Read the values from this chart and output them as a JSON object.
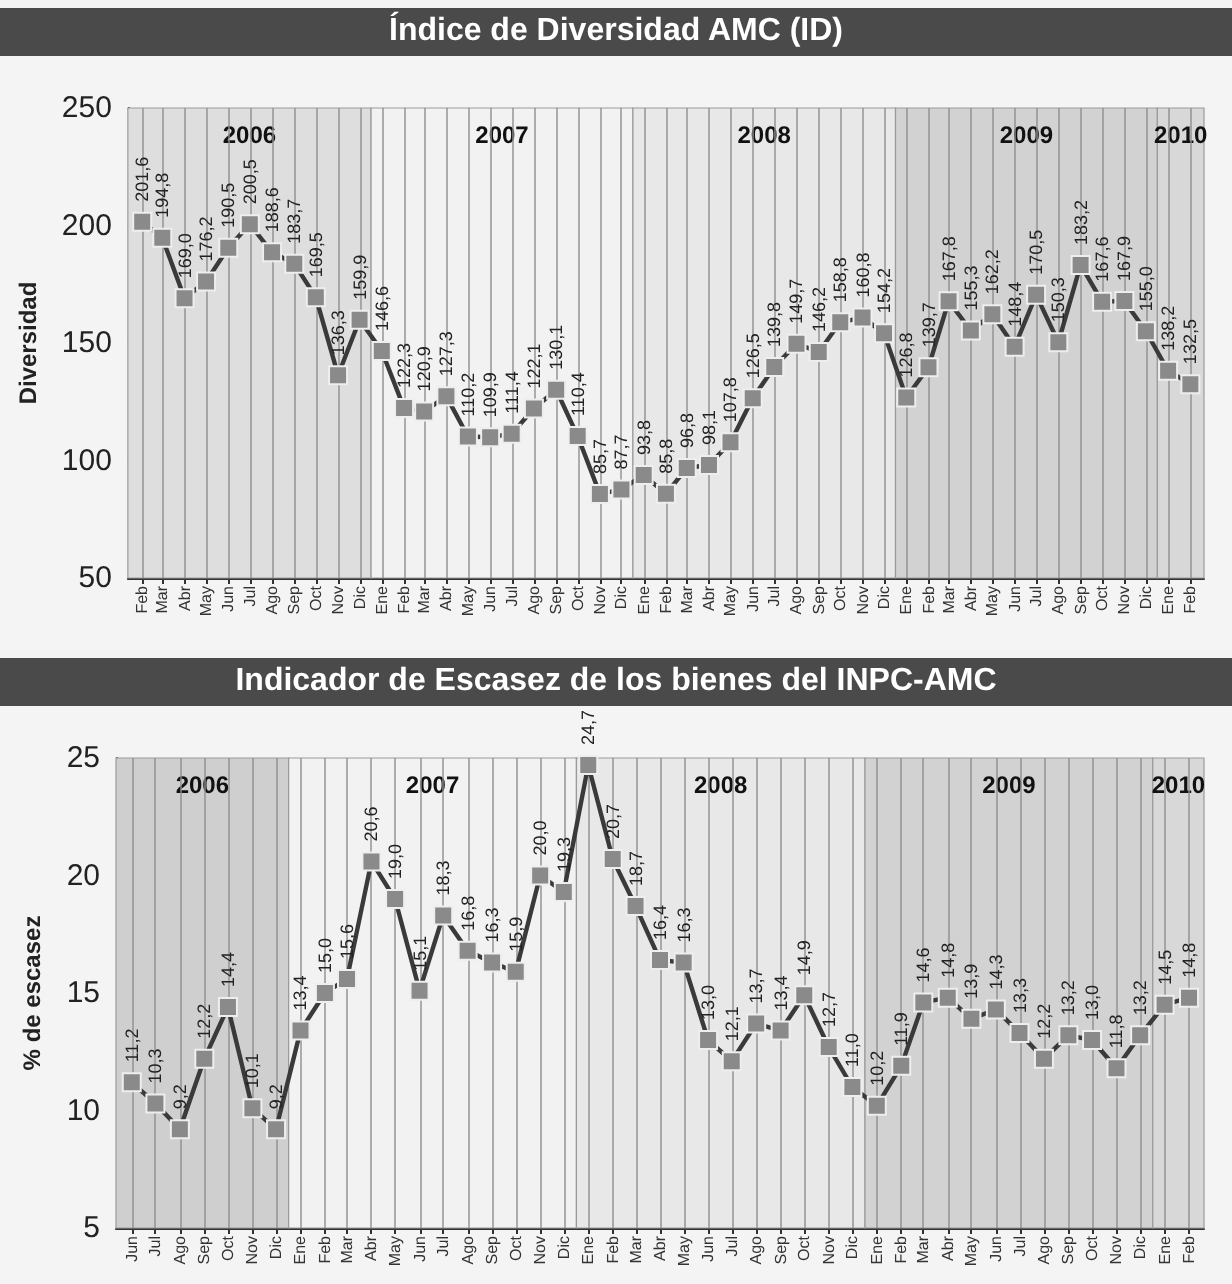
{
  "chart_data": [
    {
      "type": "line",
      "title": "Índice de Diversidad AMC (ID)",
      "ylabel": "Diversidad",
      "x": [
        "2006-02",
        "2006-03",
        "2006-04",
        "2006-05",
        "2006-06",
        "2006-07",
        "2006-08",
        "2006-09",
        "2006-10",
        "2006-11",
        "2006-12",
        "2007-01",
        "2007-02",
        "2007-03",
        "2007-04",
        "2007-05",
        "2007-06",
        "2007-07",
        "2007-08",
        "2007-09",
        "2007-10",
        "2007-11",
        "2007-12",
        "2008-01",
        "2008-02",
        "2008-03",
        "2008-04",
        "2008-05",
        "2008-06",
        "2008-07",
        "2008-08",
        "2008-09",
        "2008-10",
        "2008-11",
        "2008-12",
        "2009-01",
        "2009-02",
        "2009-03",
        "2009-04",
        "2009-05",
        "2009-06",
        "2009-07",
        "2009-08",
        "2009-09",
        "2009-10",
        "2009-11",
        "2009-12",
        "2010-01",
        "2010-02"
      ],
      "series": [
        {
          "color": "#3a3a3a",
          "values": [
            201.6,
            194.8,
            169.0,
            176.2,
            190.5,
            200.5,
            188.6,
            183.7,
            169.5,
            136.3,
            159.9,
            146.6,
            122.3,
            120.9,
            127.3,
            110.2,
            109.9,
            111.4,
            122.1,
            130.1,
            110.4,
            85.7,
            87.7,
            93.8,
            85.8,
            96.8,
            98.1,
            107.8,
            126.5,
            139.8,
            149.7,
            146.2,
            158.8,
            160.8,
            154.2,
            126.8,
            139.7,
            167.8,
            155.3,
            162.2,
            148.4,
            170.5,
            150.3,
            183.2,
            167.6,
            167.9,
            155.0,
            138.2,
            132.5
          ],
          "value_labels": [
            "201,6",
            "194,8",
            "169,0",
            "176,2",
            "190,5",
            "200,5",
            "188,6",
            "183,7",
            "169,5",
            "136,3",
            "159,9",
            "146,6",
            "122,3",
            "120,9",
            "127,3",
            "110,2",
            "109,9",
            "111,4",
            "122,1",
            "130,1",
            "110,4",
            "85,7",
            "87,7",
            "93,8",
            "85,8",
            "96,8",
            "98,1",
            "107,8",
            "126,5",
            "139,8",
            "149,7",
            "146,2",
            "158,8",
            "160,8",
            "154,2",
            "126,8",
            "139,7",
            "167,8",
            "155,3",
            "162,2",
            "148,4",
            "170,5",
            "150,3",
            "183,2",
            "167,6",
            "167,9",
            "155,0",
            "138,2",
            "132,5"
          ]
        }
      ],
      "xlim": [
        "2006-01-12",
        "2010-02-20"
      ],
      "xticks": [
        {
          "value": "2006-02",
          "label": "Feb"
        },
        {
          "value": "2006-03",
          "label": "Mar"
        },
        {
          "value": "2006-04",
          "label": "Abr"
        },
        {
          "value": "2006-05",
          "label": "May"
        },
        {
          "value": "2006-06",
          "label": "Jun"
        },
        {
          "value": "2006-07",
          "label": "Jul"
        },
        {
          "value": "2006-08",
          "label": "Ago"
        },
        {
          "value": "2006-09",
          "label": "Sep"
        },
        {
          "value": "2006-10",
          "label": "Oct"
        },
        {
          "value": "2006-11",
          "label": "Nov"
        },
        {
          "value": "2006-12",
          "label": "Dic"
        },
        {
          "value": "2007-01",
          "label": "Ene"
        },
        {
          "value": "2007-02",
          "label": "Feb"
        },
        {
          "value": "2007-03",
          "label": "Mar"
        },
        {
          "value": "2007-04",
          "label": "Abr"
        },
        {
          "value": "2007-05",
          "label": "May"
        },
        {
          "value": "2007-06",
          "label": "Jun"
        },
        {
          "value": "2007-07",
          "label": "Jul"
        },
        {
          "value": "2007-08",
          "label": "Ago"
        },
        {
          "value": "2007-09",
          "label": "Sep"
        },
        {
          "value": "2007-10",
          "label": "Oct"
        },
        {
          "value": "2007-11",
          "label": "Nov"
        },
        {
          "value": "2007-12",
          "label": "Dic"
        },
        {
          "value": "2008-01",
          "label": "Ene"
        },
        {
          "value": "2008-02",
          "label": "Feb"
        },
        {
          "value": "2008-03",
          "label": "Mar"
        },
        {
          "value": "2008-04",
          "label": "Abr"
        },
        {
          "value": "2008-05",
          "label": "May"
        },
        {
          "value": "2008-06",
          "label": "Jun"
        },
        {
          "value": "2008-07",
          "label": "Jul"
        },
        {
          "value": "2008-08",
          "label": "Ago"
        },
        {
          "value": "2008-09",
          "label": "Sep"
        },
        {
          "value": "2008-10",
          "label": "Oct"
        },
        {
          "value": "2008-11",
          "label": "Nov"
        },
        {
          "value": "2008-12",
          "label": "Dic"
        },
        {
          "value": "2009-01",
          "label": "Ene"
        },
        {
          "value": "2009-02",
          "label": "Feb"
        },
        {
          "value": "2009-03",
          "label": "Mar"
        },
        {
          "value": "2009-04",
          "label": "Abr"
        },
        {
          "value": "2009-05",
          "label": "May"
        },
        {
          "value": "2009-06",
          "label": "Jun"
        },
        {
          "value": "2009-07",
          "label": "Jul"
        },
        {
          "value": "2009-08",
          "label": "Ago"
        },
        {
          "value": "2009-09",
          "label": "Sep"
        },
        {
          "value": "2009-10",
          "label": "Oct"
        },
        {
          "value": "2009-11",
          "label": "Nov"
        },
        {
          "value": "2009-12",
          "label": "Dic"
        },
        {
          "value": "2010-01",
          "label": "Ene"
        },
        {
          "value": "2010-02",
          "label": "Feb"
        }
      ],
      "ylim": [
        50,
        250
      ],
      "yticks": [
        50,
        100,
        150,
        200,
        250
      ],
      "bands": [
        {
          "axis": "x",
          "from": "2006-01-12",
          "to": "2006-12-17",
          "label": "2006",
          "color": "#dedede"
        },
        {
          "axis": "x",
          "from": "2006-12-17",
          "to": "2007-12-17",
          "label": "2007",
          "color": "#f2f2f2"
        },
        {
          "axis": "x",
          "from": "2007-12-17",
          "to": "2008-12-17",
          "label": "2008",
          "color": "#e8e8e8"
        },
        {
          "axis": "x",
          "from": "2008-12-17",
          "to": "2009-12-17",
          "label": "2009",
          "color": "#d2d2d2"
        },
        {
          "axis": "x",
          "from": "2009-12-17",
          "to": "2010-02-20",
          "label": "2010",
          "color": "#d8d8d8"
        }
      ],
      "grid": "x",
      "marker": "square",
      "line_style": "solid"
    },
    {
      "type": "line",
      "title": "Indicador de Escasez de los bienes del INPC-AMC",
      "ylabel": "% de escasez",
      "x": [
        "2006-06",
        "2006-07",
        "2006-08",
        "2006-09",
        "2006-10",
        "2006-11",
        "2006-12",
        "2007-01",
        "2007-02",
        "2007-03",
        "2007-04",
        "2007-05",
        "2007-06",
        "2007-07",
        "2007-08",
        "2007-09",
        "2007-10",
        "2007-11",
        "2007-12",
        "2008-01",
        "2008-02",
        "2008-03",
        "2008-04",
        "2008-05",
        "2008-06",
        "2008-07",
        "2008-08",
        "2008-09",
        "2008-10",
        "2008-11",
        "2008-12",
        "2009-01",
        "2009-02",
        "2009-03",
        "2009-04",
        "2009-05",
        "2009-06",
        "2009-07",
        "2009-08",
        "2009-09",
        "2009-10",
        "2009-11",
        "2009-12",
        "2010-01",
        "2010-02"
      ],
      "series": [
        {
          "color": "#3a3a3a",
          "values": [
            11.2,
            10.3,
            9.2,
            12.2,
            14.4,
            10.1,
            9.2,
            13.4,
            15.0,
            15.6,
            20.6,
            19.0,
            15.1,
            18.3,
            16.8,
            16.3,
            15.9,
            20.0,
            19.3,
            24.7,
            20.7,
            18.7,
            16.4,
            16.3,
            13.0,
            12.1,
            13.7,
            13.4,
            14.9,
            12.7,
            11.0,
            10.2,
            11.9,
            14.6,
            14.8,
            13.9,
            14.3,
            13.3,
            12.2,
            13.2,
            13.0,
            11.8,
            13.2,
            14.5,
            14.8
          ],
          "value_labels": [
            "11,2",
            "10,3",
            "9,2",
            "12,2",
            "14,4",
            "10,1",
            "9,2",
            "13,4",
            "15,0",
            "15,6",
            "20,6",
            "19,0",
            "15,1",
            "18,3",
            "16,8",
            "16,3",
            "15,9",
            "20,0",
            "19,3",
            "24,7",
            "20,7",
            "18,7",
            "16,4",
            "16,3",
            "13,0",
            "12,1",
            "13,7",
            "13,4",
            "14,9",
            "12,7",
            "11,0",
            "10,2",
            "11,9",
            "14,6",
            "14,8",
            "13,9",
            "14,3",
            "13,3",
            "12,2",
            "13,2",
            "13,0",
            "11,8",
            "13,2",
            "14,5",
            "14,8"
          ]
        }
      ],
      "xlim": [
        "2006-05-12",
        "2010-02-20"
      ],
      "xticks": [
        {
          "value": "2006-06",
          "label": "Jun"
        },
        {
          "value": "2006-07",
          "label": "Jul"
        },
        {
          "value": "2006-08",
          "label": "Ago"
        },
        {
          "value": "2006-09",
          "label": "Sep"
        },
        {
          "value": "2006-10",
          "label": "Oct"
        },
        {
          "value": "2006-11",
          "label": "Nov"
        },
        {
          "value": "2006-12",
          "label": "Dic"
        },
        {
          "value": "2007-01",
          "label": "Ene"
        },
        {
          "value": "2007-02",
          "label": "Feb"
        },
        {
          "value": "2007-03",
          "label": "Mar"
        },
        {
          "value": "2007-04",
          "label": "Abr"
        },
        {
          "value": "2007-05",
          "label": "May"
        },
        {
          "value": "2007-06",
          "label": "Jun"
        },
        {
          "value": "2007-07",
          "label": "Jul"
        },
        {
          "value": "2007-08",
          "label": "Ago"
        },
        {
          "value": "2007-09",
          "label": "Sep"
        },
        {
          "value": "2007-10",
          "label": "Oct"
        },
        {
          "value": "2007-11",
          "label": "Nov"
        },
        {
          "value": "2007-12",
          "label": "Dic"
        },
        {
          "value": "2008-01",
          "label": "Ene"
        },
        {
          "value": "2008-02",
          "label": "Feb"
        },
        {
          "value": "2008-03",
          "label": "Mar"
        },
        {
          "value": "2008-04",
          "label": "Abr"
        },
        {
          "value": "2008-05",
          "label": "May"
        },
        {
          "value": "2008-06",
          "label": "Jun"
        },
        {
          "value": "2008-07",
          "label": "Jul"
        },
        {
          "value": "2008-08",
          "label": "Ago"
        },
        {
          "value": "2008-09",
          "label": "Sep"
        },
        {
          "value": "2008-10",
          "label": "Oct"
        },
        {
          "value": "2008-11",
          "label": "Nov"
        },
        {
          "value": "2008-12",
          "label": "Dic"
        },
        {
          "value": "2009-01",
          "label": "Ene"
        },
        {
          "value": "2009-02",
          "label": "Feb"
        },
        {
          "value": "2009-03",
          "label": "Mar"
        },
        {
          "value": "2009-04",
          "label": "Abr"
        },
        {
          "value": "2009-05",
          "label": "May"
        },
        {
          "value": "2009-06",
          "label": "Jun"
        },
        {
          "value": "2009-07",
          "label": "Jul"
        },
        {
          "value": "2009-08",
          "label": "Ago"
        },
        {
          "value": "2009-09",
          "label": "Sep"
        },
        {
          "value": "2009-10",
          "label": "Oct"
        },
        {
          "value": "2009-11",
          "label": "Nov"
        },
        {
          "value": "2009-12",
          "label": "Dic"
        },
        {
          "value": "2010-01",
          "label": "Ene"
        },
        {
          "value": "2010-02",
          "label": "Feb"
        }
      ],
      "ylim": [
        5,
        25
      ],
      "yticks": [
        5,
        10,
        15,
        20,
        25
      ],
      "bands": [
        {
          "axis": "x",
          "from": "2006-05-12",
          "to": "2006-12-17",
          "label": "2006",
          "color": "#cfcfcf"
        },
        {
          "axis": "x",
          "from": "2006-12-17",
          "to": "2007-12-17",
          "label": "2007",
          "color": "#f2f2f2"
        },
        {
          "axis": "x",
          "from": "2007-12-17",
          "to": "2008-12-17",
          "label": "2008",
          "color": "#e8e8e8"
        },
        {
          "axis": "x",
          "from": "2008-12-17",
          "to": "2009-12-17",
          "label": "2009",
          "color": "#d2d2d2"
        },
        {
          "axis": "x",
          "from": "2009-12-17",
          "to": "2010-02-20",
          "label": "2010",
          "color": "#d8d8d8"
        }
      ],
      "grid": "x",
      "marker": "square",
      "line_style": "solid"
    }
  ]
}
